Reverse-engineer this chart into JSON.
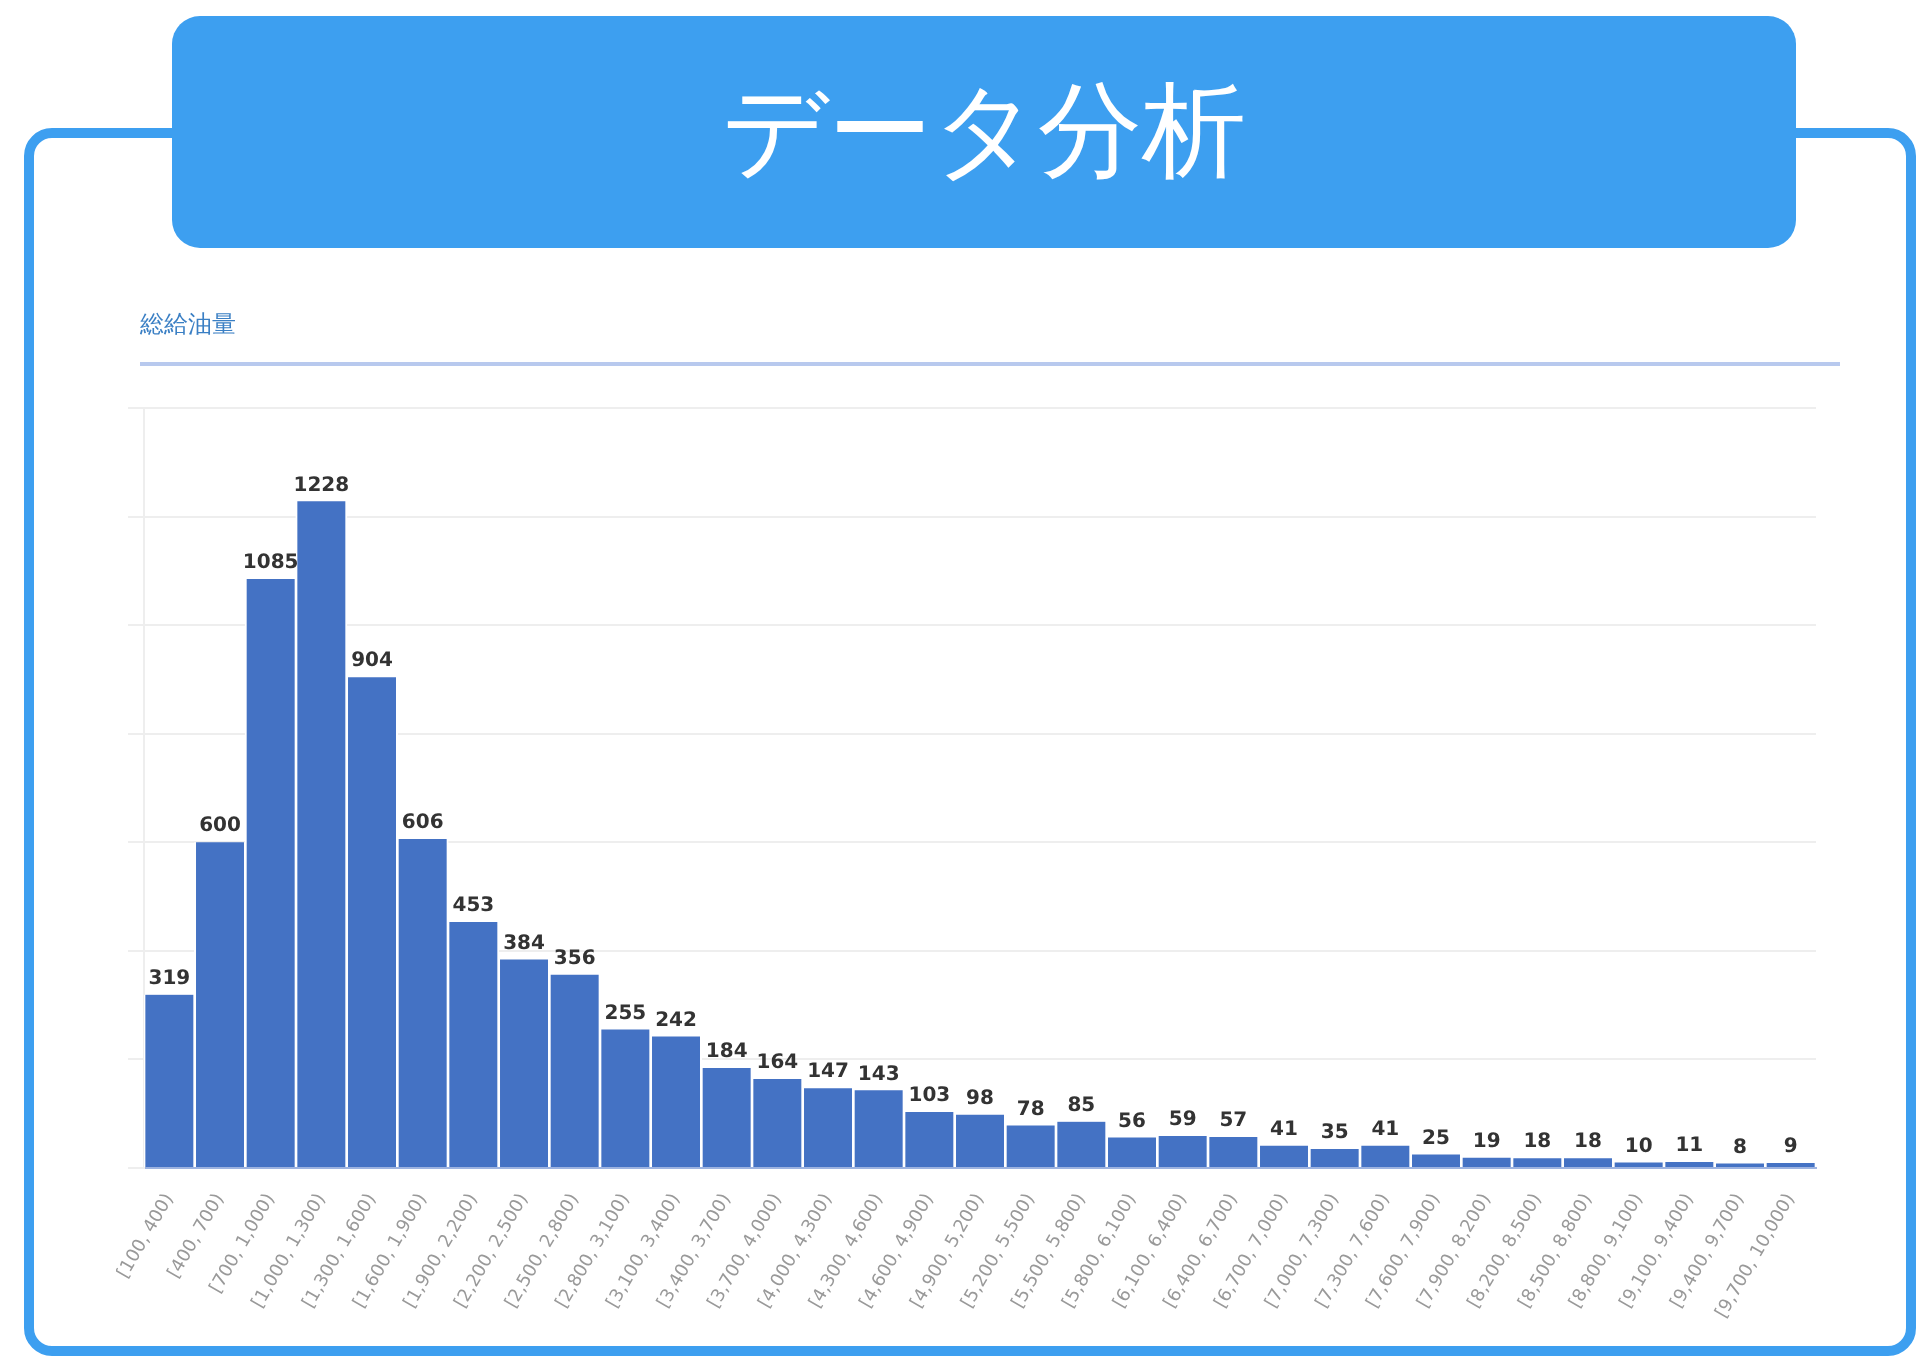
{
  "chart_data": {
    "type": "bar",
    "title": "データ分析",
    "subtitle": "総給油量",
    "categories": [
      "[100, 400)",
      "[400, 700)",
      "[700, 1,000)",
      "[1,000, 1,300)",
      "[1,300, 1,600)",
      "[1,600, 1,900)",
      "[1,900, 2,200)",
      "[2,200, 2,500)",
      "[2,500, 2,800)",
      "[2,800, 3,100)",
      "[3,100, 3,400)",
      "[3,400, 3,700)",
      "[3,700, 4,000)",
      "[4,000, 4,300)",
      "[4,300, 4,600)",
      "[4,600, 4,900)",
      "[4,900, 5,200)",
      "[5,200, 5,500)",
      "[5,500, 5,800)",
      "[5,800, 6,100)",
      "[6,100, 6,400)",
      "[6,400, 6,700)",
      "[6,700, 7,000)",
      "[7,000, 7,300)",
      "[7,300, 7,600)",
      "[7,600, 7,900)",
      "[7,900, 8,200)",
      "[8,200, 8,500)",
      "[8,500, 8,800)",
      "[8,800, 9,100)",
      "[9,100, 9,400)",
      "[9,400, 9,700)",
      "[9,700, 10,000)"
    ],
    "values": [
      319,
      600,
      1085,
      1228,
      904,
      606,
      453,
      384,
      356,
      255,
      242,
      184,
      164,
      147,
      143,
      103,
      98,
      78,
      85,
      56,
      59,
      57,
      41,
      35,
      41,
      25,
      19,
      18,
      18,
      10,
      11,
      8,
      9
    ],
    "color": "#4472c4",
    "ylim": [
      0,
      1400
    ],
    "yticks": [
      {
        "value": 0,
        "label": null
      },
      {
        "value": 200,
        "label": null
      },
      {
        "value": 400,
        "label": null
      },
      {
        "value": 600,
        "label": null
      },
      {
        "value": 800,
        "label": null
      },
      {
        "value": 1000,
        "label": null
      },
      {
        "value": 1200,
        "label": null
      },
      {
        "value": 1400,
        "label": null
      }
    ],
    "tick_labels": "x",
    "grid": "y",
    "data_labels": true,
    "legend": false
  }
}
